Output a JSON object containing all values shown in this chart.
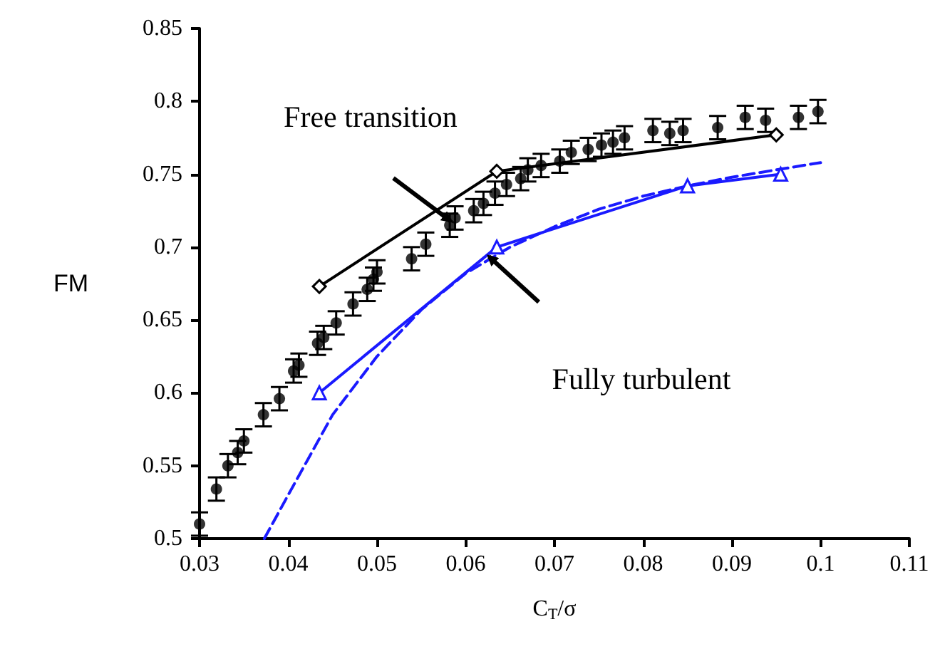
{
  "chart_data": {
    "type": "scatter",
    "xlabel": "C$_{T}$/σ",
    "ylabel": "FM",
    "xlim": [
      0.03,
      0.11
    ],
    "xticks": [
      0.03,
      0.04,
      0.05,
      0.06,
      0.07,
      0.08,
      0.09,
      0.1,
      0.11
    ],
    "ylim": [
      0.5,
      0.85
    ],
    "yticks": [
      0.5,
      0.55,
      0.6,
      0.65,
      0.7,
      0.75,
      0.8,
      0.85
    ],
    "grid": false,
    "annotations": [
      "Free transition",
      "Fully turbulent"
    ],
    "series": [
      {
        "color": "#000000",
        "marker": "circle",
        "x": [
          0.03,
          0.0319,
          0.0332,
          0.0343,
          0.035,
          0.0372,
          0.039,
          0.0406,
          0.0412,
          0.0433,
          0.044,
          0.0454,
          0.0473,
          0.0489,
          0.0496,
          0.05,
          0.0539,
          0.0555,
          0.0582,
          0.0588,
          0.0609,
          0.062,
          0.0633,
          0.0646,
          0.0662,
          0.067,
          0.0685,
          0.0706,
          0.0719,
          0.0738,
          0.0753,
          0.0766,
          0.0779,
          0.0811,
          0.083,
          0.0845,
          0.0884,
          0.0915,
          0.0938,
          0.0975,
          0.0997
        ],
        "values": [
          0.51,
          0.534,
          0.55,
          0.559,
          0.567,
          0.585,
          0.596,
          0.615,
          0.619,
          0.634,
          0.638,
          0.648,
          0.661,
          0.671,
          0.678,
          0.683,
          0.692,
          0.702,
          0.715,
          0.72,
          0.725,
          0.73,
          0.737,
          0.743,
          0.747,
          0.753,
          0.756,
          0.759,
          0.765,
          0.767,
          0.77,
          0.772,
          0.775,
          0.78,
          0.778,
          0.78,
          0.782,
          0.789,
          0.787,
          0.789,
          0.793
        ],
        "errors": [
          0.008,
          0.008,
          0.008,
          0.008,
          0.008,
          0.008,
          0.008,
          0.008,
          0.008,
          0.008,
          0.008,
          0.008,
          0.008,
          0.008,
          0.008,
          0.008,
          0.008,
          0.008,
          0.008,
          0.008,
          0.008,
          0.008,
          0.008,
          0.008,
          0.008,
          0.008,
          0.008,
          0.008,
          0.008,
          0.008,
          0.008,
          0.008,
          0.008,
          0.008,
          0.008,
          0.008,
          0.008,
          0.008,
          0.008,
          0.008,
          0.008
        ]
      },
      {
        "type": "line",
        "color": "#000000",
        "marker": "diamond",
        "line_style": "solid",
        "x": [
          0.0435,
          0.0635,
          0.095
        ],
        "values": [
          0.673,
          0.752,
          0.777
        ]
      },
      {
        "type": "line",
        "color": "#1a1aff",
        "marker": "triangle",
        "line_style": "solid",
        "x": [
          0.0435,
          0.0635,
          0.085,
          0.0955
        ],
        "values": [
          0.6,
          0.7,
          0.742,
          0.75
        ]
      },
      {
        "type": "line",
        "color": "#1a1aff",
        "marker": "none",
        "line_style": "dashed",
        "x": [
          0.0373,
          0.04,
          0.045,
          0.05,
          0.055,
          0.06,
          0.065,
          0.07,
          0.075,
          0.08,
          0.085,
          0.09,
          0.095,
          0.1
        ],
        "values": [
          0.5,
          0.53,
          0.585,
          0.625,
          0.657,
          0.682,
          0.7,
          0.714,
          0.726,
          0.735,
          0.742,
          0.748,
          0.753,
          0.758
        ]
      }
    ]
  }
}
